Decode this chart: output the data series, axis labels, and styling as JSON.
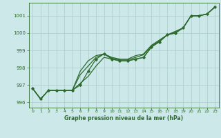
{
  "xlabel": "Graphe pression niveau de la mer (hPa)",
  "hours": [
    0,
    1,
    2,
    3,
    4,
    5,
    6,
    7,
    8,
    9,
    10,
    11,
    12,
    13,
    14,
    15,
    16,
    17,
    18,
    19,
    20,
    21,
    22,
    23
  ],
  "line_main": [
    996.8,
    996.2,
    996.7,
    996.7,
    996.7,
    996.7,
    997.0,
    997.8,
    998.5,
    998.8,
    998.5,
    998.4,
    998.4,
    998.5,
    998.6,
    999.2,
    999.5,
    999.9,
    1000.0,
    1000.3,
    1001.0,
    1001.0,
    1001.1,
    1001.5
  ],
  "line_upper": [
    996.8,
    996.2,
    996.7,
    996.7,
    996.7,
    996.7,
    997.8,
    998.4,
    998.7,
    998.8,
    998.6,
    998.5,
    998.5,
    998.7,
    998.8,
    999.3,
    999.6,
    999.9,
    1000.1,
    1000.3,
    1001.0,
    1001.0,
    1001.1,
    1001.5
  ],
  "line_upper2": [
    996.8,
    996.2,
    996.7,
    996.7,
    996.7,
    996.7,
    997.6,
    998.1,
    998.6,
    998.8,
    998.55,
    998.45,
    998.45,
    998.6,
    998.75,
    999.25,
    999.55,
    999.9,
    1000.05,
    1000.3,
    1001.0,
    1001.0,
    1001.1,
    1001.5
  ],
  "line_lower": [
    996.8,
    996.2,
    996.7,
    996.7,
    996.7,
    996.7,
    997.1,
    997.5,
    998.1,
    998.6,
    998.5,
    998.4,
    998.4,
    998.5,
    998.6,
    999.2,
    999.5,
    999.9,
    1000.0,
    1000.3,
    1001.0,
    1001.0,
    1001.1,
    1001.5
  ],
  "line_color": "#2d6a2d",
  "bg_color": "#cce8e8",
  "grid_color": "#aacaca",
  "ylim": [
    995.7,
    1001.75
  ],
  "yticks": [
    996,
    997,
    998,
    999,
    1000,
    1001
  ],
  "xticks": [
    0,
    1,
    2,
    3,
    4,
    5,
    6,
    7,
    8,
    9,
    10,
    11,
    12,
    13,
    14,
    15,
    16,
    17,
    18,
    19,
    20,
    21,
    22,
    23
  ]
}
